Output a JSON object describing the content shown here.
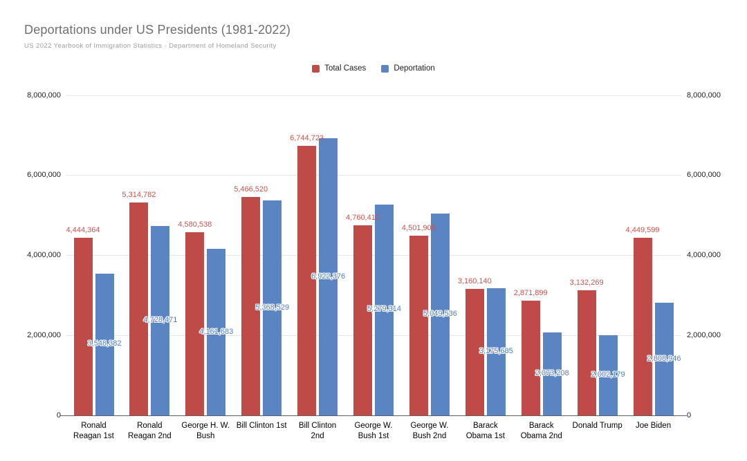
{
  "header": {
    "title": "Deportations under US Presidents (1981-2022)",
    "subtitle": "US 2022 Yearbook of Immigration Statistics · Department of Homeland Security"
  },
  "legend": {
    "items": [
      {
        "label": "Total Cases",
        "color": "#be4b48"
      },
      {
        "label": "Deportation",
        "color": "#5b84c2"
      }
    ]
  },
  "chart_data": {
    "type": "bar",
    "title": "Deportations under US Presidents (1981-2022)",
    "subtitle": "US 2022 Yearbook of Immigration Statistics · Department of Homeland Security",
    "categories": [
      "Ronald Reagan 1st",
      "Ronald Reagan 2nd",
      "George H. W. Bush",
      "Bill Clinton 1st",
      "Bill Clinton 2nd",
      "George W. Bush 1st",
      "George W. Bush 2nd",
      "Barack Obama 1st",
      "Barack Obama 2nd",
      "Donald Trump",
      "Joe Biden"
    ],
    "category_lines": [
      [
        "Ronald",
        "Reagan 1st"
      ],
      [
        "Ronald",
        "Reagan 2nd"
      ],
      [
        "George H. W.",
        "Bush"
      ],
      [
        "Bill Clinton 1st"
      ],
      [
        "Bill Clinton",
        "2nd"
      ],
      [
        "George W.",
        "Bush 1st"
      ],
      [
        "George W.",
        "Bush 2nd"
      ],
      [
        "Barack",
        "Obama 1st"
      ],
      [
        "Barack",
        "Obama 2nd"
      ],
      [
        "Donald Trump"
      ],
      [
        "Joe Biden"
      ]
    ],
    "series": [
      {
        "name": "Total Cases",
        "color": "#be4b48",
        "label_color": "#c9544d",
        "values": [
          4444364,
          5314782,
          4580538,
          5466520,
          6744723,
          4760410,
          4501905,
          3160140,
          2871899,
          3132269,
          4449599
        ],
        "labels": [
          "4,444,364",
          "5,314,782",
          "4,580,538",
          "5,466,520",
          "6,744,723",
          "4,760,410",
          "4,501,905",
          "3,160,140",
          "2,871,899",
          "3,132,269",
          "4,449,599"
        ]
      },
      {
        "name": "Deportation",
        "color": "#5b84c2",
        "label_color": "#4f7dc0",
        "values": [
          3548382,
          4728471,
          4161683,
          5368529,
          6922376,
          5279314,
          5049536,
          3175685,
          2073208,
          2002179,
          2808946
        ],
        "labels": [
          "3,548,382",
          "4,728,471",
          "4,161,683",
          "5,368,529",
          "6,922,376",
          "5,279,314",
          "5,049,536",
          "3,175,685",
          "2,073,208",
          "2,002,179",
          "2,808,946"
        ]
      }
    ],
    "ylim": [
      0,
      8000000
    ],
    "yticks": {
      "values": [
        0,
        2000000,
        4000000,
        6000000,
        8000000
      ],
      "labels": [
        "0",
        "2,000,000",
        "4,000,000",
        "6,000,000",
        "8,000,000"
      ]
    },
    "grid": true,
    "legend_position": "top-center",
    "axes": {
      "y_left": true,
      "y_right": true
    }
  }
}
